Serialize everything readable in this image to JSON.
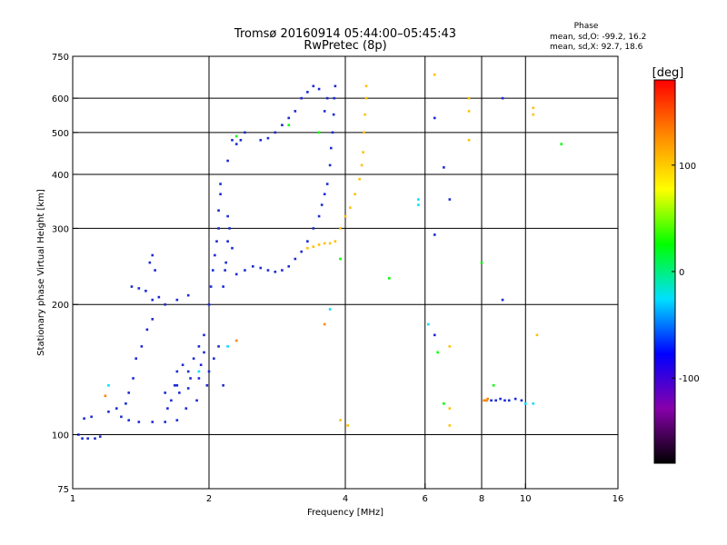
{
  "chart_data": {
    "type": "scatter",
    "title": "Tromsø 20160914 05:44:00–05:45:43",
    "subtitle": "RwPretec (8p)",
    "xlabel": "Frequency [MHz]",
    "ylabel": "Stationary phase Virtual Height [km]",
    "x_scale": "log",
    "y_scale": "log",
    "xlim": [
      1,
      16
    ],
    "ylim": [
      75,
      750
    ],
    "x_ticks": [
      1,
      2,
      4,
      6,
      8,
      10,
      16
    ],
    "x_tick_labels": [
      "1",
      "2",
      "4",
      "6",
      "8",
      "10",
      "16"
    ],
    "x_grid": [
      2,
      4,
      6,
      8,
      10
    ],
    "y_ticks": [
      75,
      100,
      200,
      300,
      400,
      500,
      600,
      750
    ],
    "y_tick_labels": [
      "75",
      "100",
      "200",
      "300",
      "400",
      "500",
      "600",
      "750"
    ],
    "y_grid": [
      100,
      200,
      300,
      400,
      500,
      600
    ],
    "grid": true,
    "phase_stats": {
      "title": "Phase",
      "line_o": "mean, sd,O: -99.2, 16.2",
      "line_x": "mean, sd,X:  92.7, 18.6"
    },
    "colorbar": {
      "label": "[deg]",
      "range": [
        -180,
        180
      ],
      "ticks": [
        100,
        0,
        -100
      ],
      "tick_labels": [
        "100",
        "0",
        "-100"
      ],
      "colormap": [
        "#000000",
        "#8800aa",
        "#0000ff",
        "#00e0ff",
        "#00ff00",
        "#ffff00",
        "#ff8800",
        "#ff0000"
      ]
    },
    "colors": {
      "o_mode": "#1a2bd4",
      "x_mode": "#ffc000",
      "green": "#6ec01e"
    },
    "series": [
      {
        "mode": "O",
        "phase": -100,
        "points": [
          [
            1.03,
            100
          ],
          [
            1.05,
            98
          ],
          [
            1.08,
            98
          ],
          [
            1.12,
            98
          ],
          [
            1.15,
            99
          ],
          [
            1.06,
            109
          ],
          [
            1.1,
            110
          ],
          [
            1.2,
            113
          ],
          [
            1.25,
            115
          ],
          [
            1.28,
            110
          ],
          [
            1.33,
            108
          ],
          [
            1.4,
            107
          ],
          [
            1.5,
            107
          ],
          [
            1.6,
            107
          ],
          [
            1.7,
            108
          ],
          [
            1.31,
            118
          ],
          [
            1.33,
            125
          ],
          [
            1.36,
            135
          ],
          [
            1.38,
            150
          ],
          [
            1.42,
            160
          ],
          [
            1.46,
            175
          ],
          [
            1.5,
            185
          ],
          [
            1.35,
            220
          ],
          [
            1.4,
            218
          ],
          [
            1.45,
            215
          ],
          [
            1.5,
            205
          ],
          [
            1.55,
            208
          ],
          [
            1.6,
            200
          ],
          [
            1.7,
            205
          ],
          [
            1.8,
            210
          ],
          [
            1.48,
            250
          ],
          [
            1.5,
            260
          ],
          [
            1.52,
            240
          ],
          [
            1.6,
            125
          ],
          [
            1.65,
            120
          ],
          [
            1.7,
            130
          ],
          [
            1.75,
            145
          ],
          [
            1.8,
            140
          ],
          [
            1.85,
            150
          ],
          [
            1.9,
            160
          ],
          [
            1.95,
            170
          ],
          [
            1.62,
            115
          ],
          [
            1.68,
            130
          ],
          [
            1.72,
            125
          ],
          [
            1.78,
            115
          ],
          [
            1.82,
            135
          ],
          [
            1.88,
            120
          ],
          [
            1.92,
            145
          ],
          [
            1.98,
            130
          ],
          [
            1.7,
            140
          ],
          [
            1.8,
            128
          ],
          [
            1.9,
            135
          ],
          [
            1.95,
            155
          ],
          [
            2.0,
            140
          ],
          [
            2.05,
            150
          ],
          [
            2.1,
            160
          ],
          [
            2.15,
            130
          ],
          [
            2.0,
            200
          ],
          [
            2.02,
            220
          ],
          [
            2.04,
            240
          ],
          [
            2.06,
            260
          ],
          [
            2.08,
            280
          ],
          [
            2.1,
            300
          ],
          [
            2.1,
            330
          ],
          [
            2.12,
            360
          ],
          [
            2.12,
            380
          ],
          [
            2.15,
            220
          ],
          [
            2.18,
            250
          ],
          [
            2.2,
            280
          ],
          [
            2.22,
            300
          ],
          [
            2.25,
            270
          ],
          [
            2.2,
            320
          ],
          [
            2.17,
            240
          ],
          [
            2.2,
            430
          ],
          [
            2.25,
            480
          ],
          [
            2.3,
            470
          ],
          [
            2.35,
            480
          ],
          [
            2.4,
            500
          ],
          [
            2.3,
            235
          ],
          [
            2.4,
            240
          ],
          [
            2.5,
            245
          ],
          [
            2.6,
            243
          ],
          [
            2.7,
            240
          ],
          [
            2.8,
            238
          ],
          [
            2.9,
            240
          ],
          [
            3.0,
            245
          ],
          [
            3.1,
            255
          ],
          [
            3.2,
            265
          ],
          [
            3.3,
            280
          ],
          [
            3.4,
            300
          ],
          [
            3.5,
            320
          ],
          [
            3.55,
            340
          ],
          [
            3.6,
            360
          ],
          [
            3.65,
            380
          ],
          [
            3.7,
            420
          ],
          [
            3.72,
            460
          ],
          [
            3.75,
            500
          ],
          [
            3.77,
            550
          ],
          [
            3.78,
            600
          ],
          [
            3.8,
            640
          ],
          [
            2.6,
            480
          ],
          [
            2.7,
            485
          ],
          [
            2.8,
            500
          ],
          [
            2.9,
            520
          ],
          [
            3.0,
            540
          ],
          [
            3.1,
            560
          ],
          [
            3.2,
            600
          ],
          [
            3.3,
            620
          ],
          [
            3.4,
            640
          ],
          [
            3.5,
            630
          ],
          [
            3.6,
            560
          ],
          [
            3.65,
            600
          ],
          [
            6.3,
            290
          ],
          [
            6.3,
            170
          ],
          [
            6.3,
            540
          ],
          [
            6.6,
            415
          ],
          [
            6.8,
            350
          ],
          [
            8.2,
            120
          ],
          [
            8.4,
            120
          ],
          [
            8.6,
            120
          ],
          [
            8.8,
            121
          ],
          [
            9.0,
            120
          ],
          [
            9.2,
            120
          ],
          [
            9.5,
            121
          ],
          [
            9.8,
            120
          ],
          [
            8.9,
            600
          ],
          [
            8.9,
            205
          ]
        ]
      },
      {
        "mode": "X",
        "phase": 95,
        "points": [
          [
            3.3,
            270
          ],
          [
            3.4,
            272
          ],
          [
            3.5,
            275
          ],
          [
            3.6,
            277
          ],
          [
            3.7,
            277
          ],
          [
            3.8,
            280
          ],
          [
            3.9,
            300
          ],
          [
            4.0,
            320
          ],
          [
            4.1,
            335
          ],
          [
            4.2,
            360
          ],
          [
            4.3,
            390
          ],
          [
            4.35,
            420
          ],
          [
            4.38,
            450
          ],
          [
            4.4,
            500
          ],
          [
            4.42,
            550
          ],
          [
            4.45,
            600
          ],
          [
            4.45,
            640
          ],
          [
            6.3,
            680
          ],
          [
            7.5,
            600
          ],
          [
            7.5,
            560
          ],
          [
            7.5,
            480
          ],
          [
            6.8,
            160
          ],
          [
            6.8,
            115
          ],
          [
            6.8,
            105
          ],
          [
            4.05,
            105
          ],
          [
            3.9,
            108
          ],
          [
            10.4,
            570
          ],
          [
            10.4,
            550
          ],
          [
            10.6,
            170
          ]
        ]
      },
      {
        "mode": "Scatter",
        "phase": 20,
        "points": [
          [
            3.0,
            520
          ],
          [
            2.3,
            490
          ],
          [
            3.5,
            500
          ],
          [
            8.0,
            250
          ],
          [
            8.5,
            130
          ],
          [
            6.4,
            155
          ],
          [
            6.6,
            118
          ],
          [
            12.0,
            470
          ],
          [
            5.0,
            230
          ],
          [
            3.9,
            255
          ]
        ]
      },
      {
        "mode": "Scatter",
        "phase": -30,
        "points": [
          [
            5.8,
            350
          ],
          [
            5.8,
            340
          ],
          [
            3.7,
            195
          ],
          [
            1.2,
            130
          ],
          [
            2.2,
            160
          ],
          [
            1.9,
            140
          ],
          [
            10.0,
            118
          ],
          [
            10.4,
            118
          ],
          [
            6.1,
            180
          ]
        ]
      },
      {
        "mode": "Scatter",
        "phase": 150,
        "points": [
          [
            8.1,
            120
          ],
          [
            8.2,
            120
          ],
          [
            8.25,
            121
          ],
          [
            3.6,
            180
          ],
          [
            2.3,
            165
          ],
          [
            1.18,
            123
          ]
        ]
      }
    ]
  }
}
